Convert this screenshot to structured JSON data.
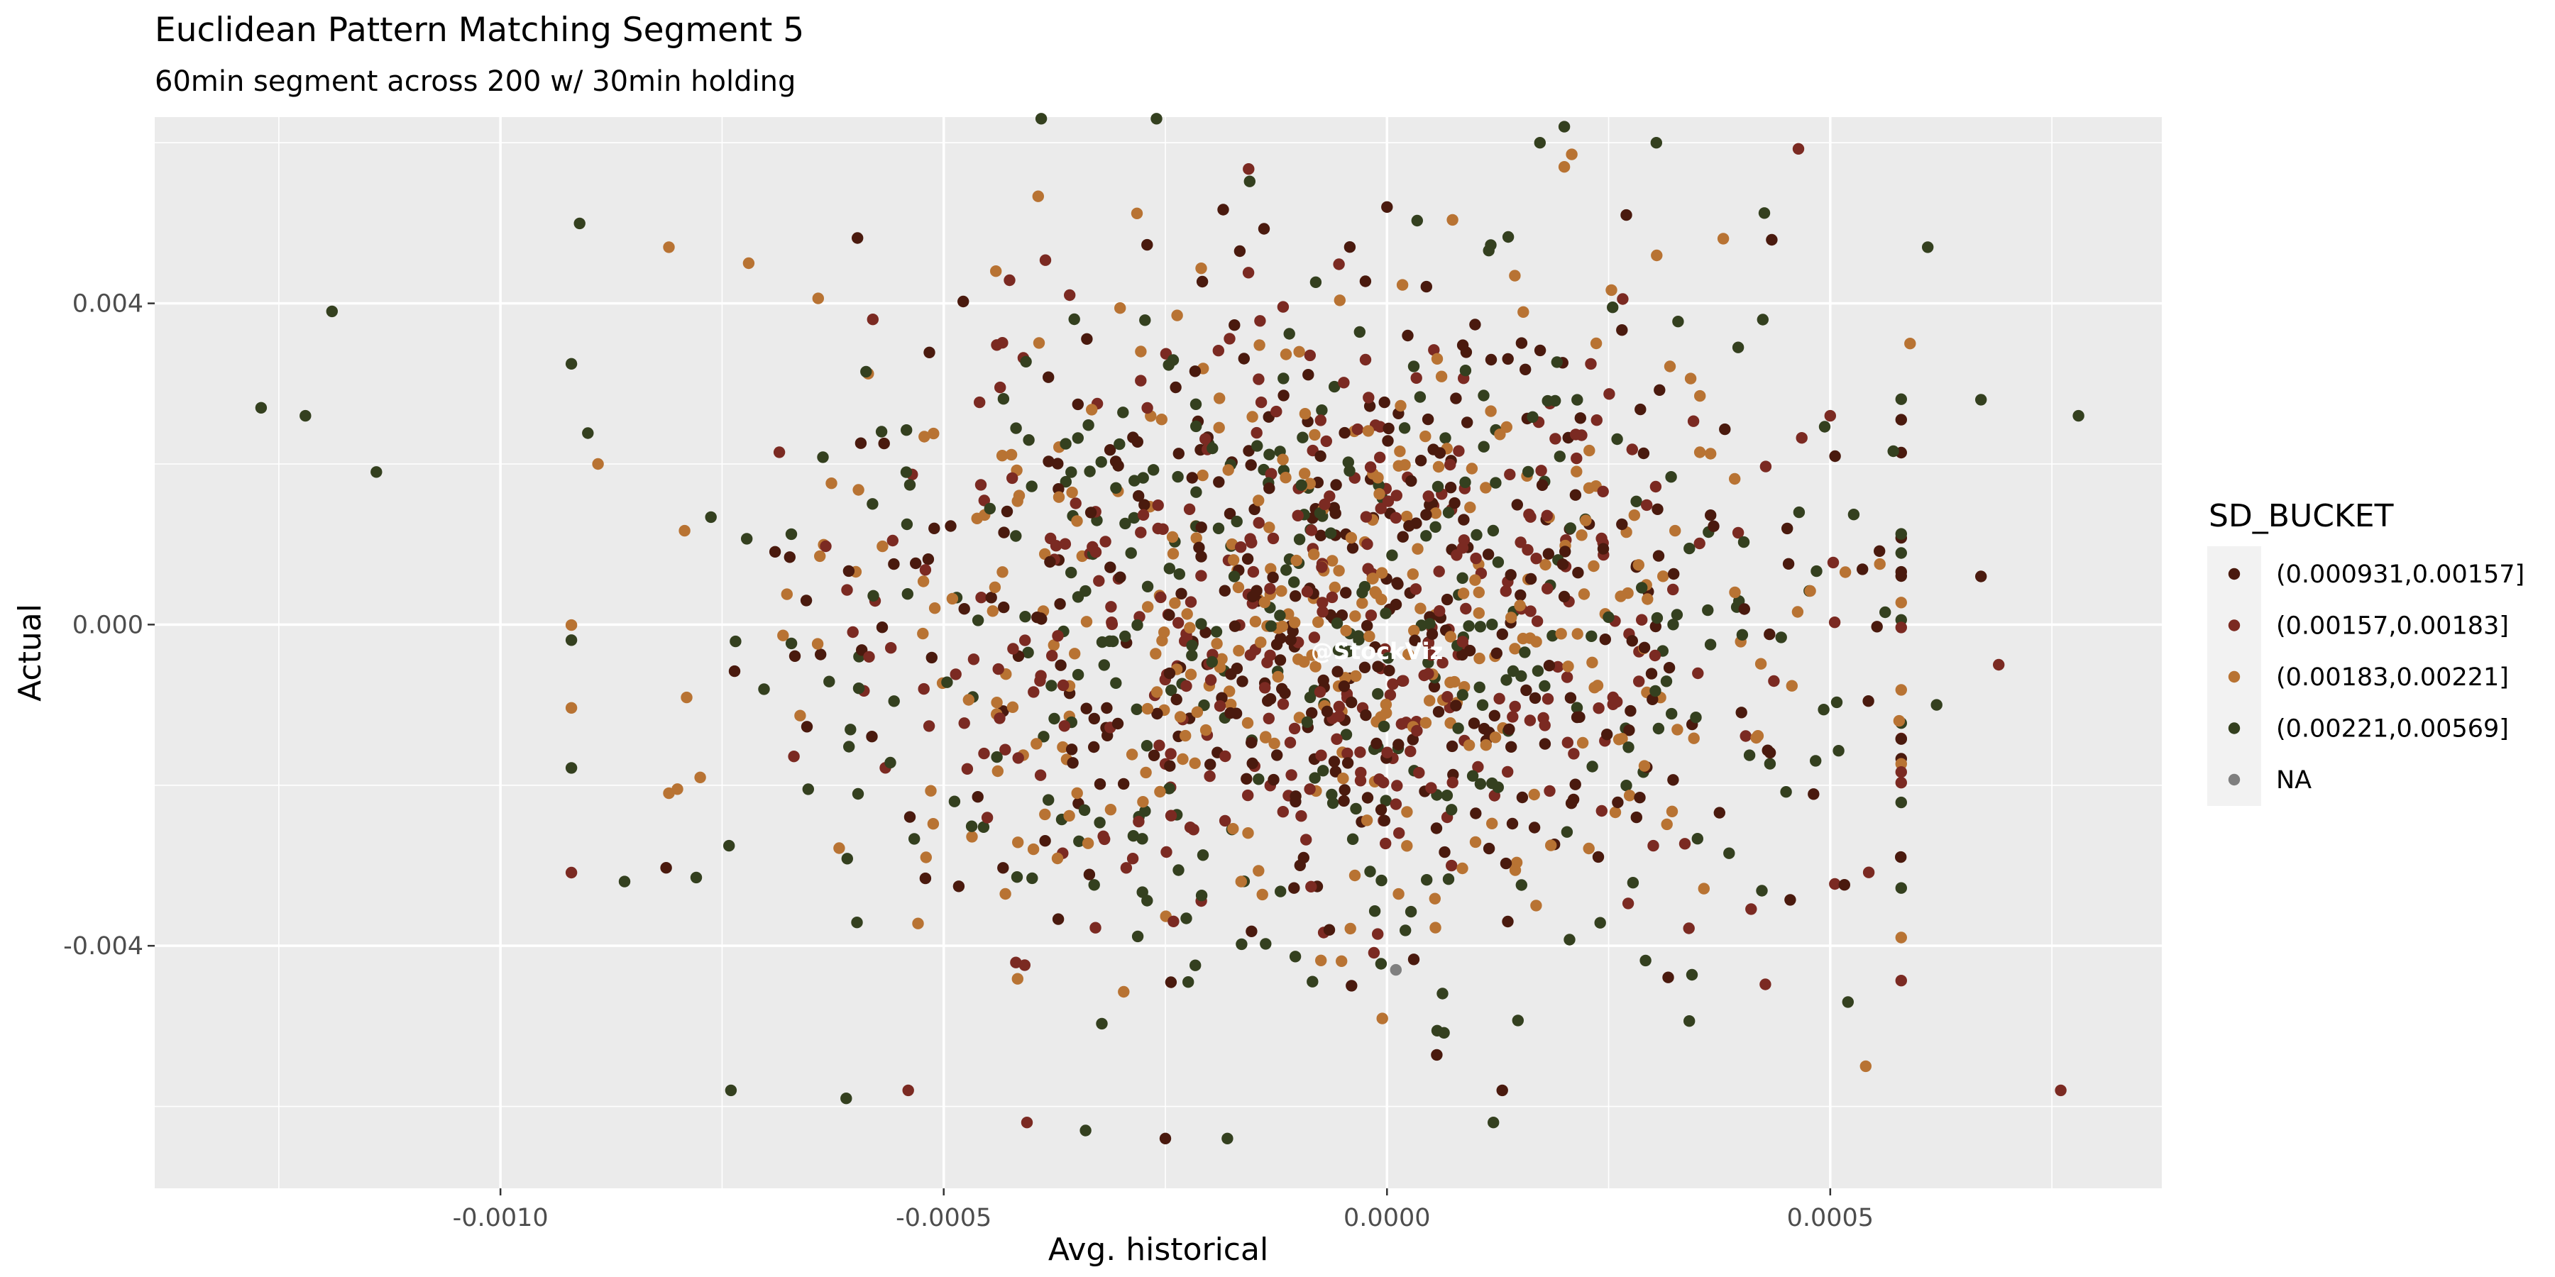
{
  "chart_data": {
    "type": "scatter",
    "title": "Euclidean Pattern Matching Segment 5",
    "subtitle": "60min segment across 200 w/ 30min holding",
    "xlabel": "Avg. historical",
    "ylabel": "Actual",
    "xlim": [
      -0.00139,
      0.000874
    ],
    "ylim": [
      -0.00702,
      0.00632
    ],
    "x_ticks": [
      -0.001,
      -0.0005,
      0.0,
      0.0005
    ],
    "x_tick_labels": [
      "-0.0010",
      "-0.0005",
      "0.0000",
      "0.0005"
    ],
    "y_ticks": [
      -0.004,
      0.0,
      0.004
    ],
    "y_tick_labels": [
      "-0.004",
      "0.000",
      "0.004"
    ],
    "grid": true,
    "background": "#EBEBEB",
    "legend": {
      "title": "SD_BUCKET",
      "position": "right",
      "entries": [
        {
          "label": "(0.000931,0.00157]",
          "color": "#4A1A0E"
        },
        {
          "label": "(0.00157,0.00183]",
          "color": "#7B2A22"
        },
        {
          "label": "(0.00183,0.00221]",
          "color": "#B87333"
        },
        {
          "label": "(0.00221,0.00569]",
          "color": "#34401F"
        },
        {
          "label": "NA",
          "color": "#7F7F7F"
        }
      ]
    },
    "annotation": "@StockViz",
    "n_points_per_series": [
      380,
      360,
      360,
      360
    ],
    "series": [
      {
        "name": "(0.000931,0.00157]",
        "color": "#4A1A0E",
        "center": [
          -5e-05,
          0.0002
        ],
        "sd": [
          0.00027,
          0.0019
        ],
        "outliers": [
          [
            0.0,
            0.0052
          ],
          [
            0.00027,
            0.0051
          ],
          [
            -0.00025,
            -0.0064
          ],
          [
            0.00013,
            -0.0058
          ],
          [
            0.00067,
            0.0006
          ]
        ]
      },
      {
        "name": "(0.00157,0.00183]",
        "color": "#7B2A22",
        "center": [
          -8e-05,
          0.0001
        ],
        "sd": [
          0.00028,
          0.0019
        ],
        "outliers": [
          [
            -0.00054,
            -0.0058
          ],
          [
            0.00069,
            -0.0005
          ],
          [
            0.0005,
            0.0026
          ],
          [
            -0.00058,
            0.0038
          ],
          [
            0.00076,
            -0.0058
          ]
        ]
      },
      {
        "name": "(0.00183,0.00221]",
        "color": "#B87333",
        "center": [
          -0.0001,
          0.0
        ],
        "sd": [
          0.0003,
          0.0019
        ],
        "outliers": [
          [
            0.0002,
            0.0057
          ],
          [
            -0.00081,
            0.0047
          ],
          [
            -0.00072,
            0.0045
          ],
          [
            0.00059,
            0.0035
          ],
          [
            0.00054,
            -0.0055
          ],
          [
            -0.00089,
            0.002
          ],
          [
            -0.00081,
            -0.0021
          ]
        ]
      },
      {
        "name": "(0.00221,0.00569]",
        "color": "#34401F",
        "center": [
          -0.0001,
          0.0
        ],
        "sd": [
          0.00036,
          0.0021
        ],
        "outliers": [
          [
            -0.00127,
            0.0027
          ],
          [
            -0.00122,
            0.0026
          ],
          [
            -0.00119,
            0.0039
          ],
          [
            -0.00114,
            0.0019
          ],
          [
            0.00078,
            0.0026
          ],
          [
            0.00067,
            0.0028
          ],
          [
            0.00061,
            0.0047
          ],
          [
            -0.00039,
            0.0063
          ],
          [
            -0.00026,
            0.0063
          ],
          [
            -0.00074,
            -0.0058
          ],
          [
            -0.00061,
            -0.0059
          ],
          [
            -0.00034,
            -0.0063
          ],
          [
            -0.00018,
            -0.0064
          ],
          [
            0.0002,
            0.0062
          ],
          [
            -0.00086,
            -0.0032
          ],
          [
            0.00062,
            -0.001
          ],
          [
            0.00052,
            -0.0047
          ],
          [
            0.00012,
            -0.0062
          ]
        ]
      },
      {
        "name": "NA",
        "color": "#7F7F7F",
        "points": [
          [
            1e-05,
            -0.0043
          ]
        ]
      }
    ]
  }
}
